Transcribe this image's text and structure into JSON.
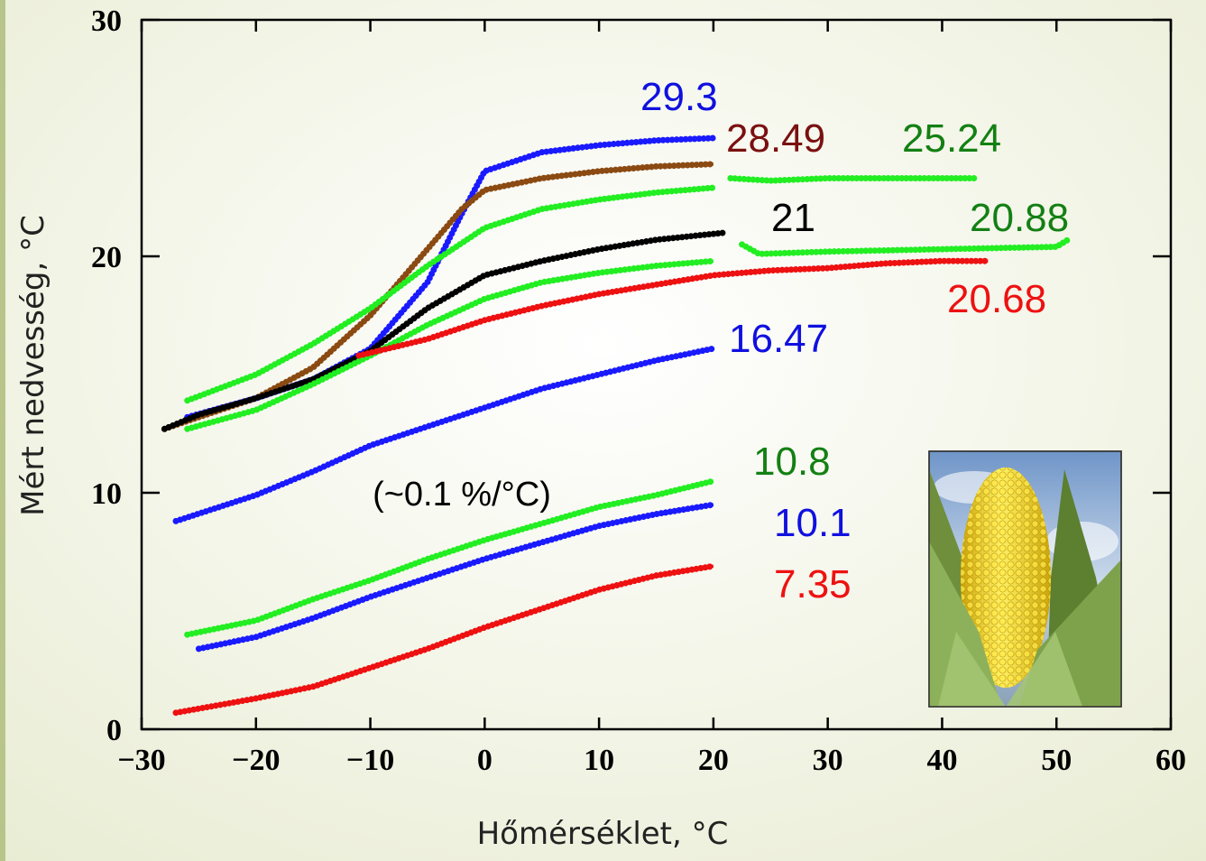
{
  "chart_data": {
    "type": "line",
    "xlabel": "Hőmérséklet, °C",
    "ylabel": "Mért nedvesség, °C",
    "annotation": "(~0.1 %/°C)",
    "xlim": [
      -30,
      60
    ],
    "xticks": [
      {
        "value": -30,
        "label": "−30"
      },
      {
        "value": -20,
        "label": "−20"
      },
      {
        "value": -10,
        "label": "−10"
      },
      0,
      10,
      20,
      30,
      40,
      50,
      60
    ],
    "ylim": [
      0,
      30
    ],
    "yticks": [
      0,
      10,
      20,
      30
    ],
    "series": [
      {
        "name": "29.3",
        "color": "#1a1aff",
        "label_color": "#1010e0",
        "x": [
          -26,
          -20,
          -15,
          -10,
          -5,
          -2,
          0,
          5,
          10,
          15,
          20
        ],
        "values": [
          13.2,
          14.0,
          14.8,
          16.1,
          18.9,
          21.8,
          23.6,
          24.4,
          24.7,
          24.9,
          25.0
        ]
      },
      {
        "name": "28.49",
        "color": "#8b4a12",
        "label_color": "#7a1010",
        "x": [
          -28,
          -25,
          -20,
          -15,
          -10,
          -5,
          -2,
          0,
          5,
          10,
          15,
          20
        ],
        "values": [
          12.7,
          13.2,
          14.0,
          15.3,
          17.5,
          20.3,
          22.0,
          22.8,
          23.3,
          23.6,
          23.8,
          23.9
        ]
      },
      {
        "name": "25.24",
        "color": "#22ee22",
        "label_color": "#138013",
        "x": [
          -26,
          -20,
          -15,
          -10,
          -5,
          0,
          5,
          10,
          15,
          20,
          null,
          21.5,
          25,
          30,
          40,
          43
        ],
        "values": [
          13.9,
          15.0,
          16.3,
          17.8,
          19.6,
          21.2,
          22.0,
          22.4,
          22.7,
          22.9,
          null,
          23.3,
          23.2,
          23.3,
          23.3,
          23.3
        ]
      },
      {
        "name": "21",
        "color": "#000000",
        "label_color": "#000000",
        "x": [
          -28,
          -25,
          -20,
          -15,
          -10,
          -5,
          0,
          5,
          10,
          15,
          21
        ],
        "values": [
          12.7,
          13.3,
          14.0,
          14.8,
          16.0,
          17.8,
          19.2,
          19.8,
          20.3,
          20.7,
          21.0
        ]
      },
      {
        "name": "20.88",
        "color": "#22ee22",
        "label_color": "#138013",
        "x": [
          -26,
          -20,
          -15,
          -10,
          -5,
          0,
          5,
          10,
          15,
          20,
          null,
          22.5,
          24,
          30,
          40,
          50,
          51
        ],
        "values": [
          12.7,
          13.5,
          14.6,
          15.8,
          17.1,
          18.2,
          18.9,
          19.3,
          19.6,
          19.8,
          null,
          20.5,
          20.1,
          20.2,
          20.3,
          20.4,
          20.7
        ]
      },
      {
        "name": "20.68",
        "color": "#ee1111",
        "label_color": "#ee1111",
        "x": [
          -11,
          -5,
          0,
          5,
          10,
          15,
          20,
          25,
          30,
          35,
          40,
          44
        ],
        "values": [
          15.8,
          16.5,
          17.3,
          17.9,
          18.4,
          18.8,
          19.2,
          19.4,
          19.5,
          19.7,
          19.8,
          19.8
        ]
      },
      {
        "name": "16.47",
        "color": "#1a1aff",
        "label_color": "#1010e0",
        "x": [
          -27,
          -20,
          -15,
          -10,
          -5,
          0,
          5,
          10,
          15,
          20
        ],
        "values": [
          8.8,
          9.9,
          10.9,
          12.0,
          12.8,
          13.6,
          14.4,
          15.0,
          15.6,
          16.1
        ]
      },
      {
        "name": "10.8",
        "color": "#22ee22",
        "label_color": "#138013",
        "x": [
          -26,
          -20,
          -15,
          -10,
          -5,
          0,
          5,
          10,
          15,
          20
        ],
        "values": [
          4.0,
          4.6,
          5.5,
          6.3,
          7.2,
          8.0,
          8.7,
          9.4,
          9.9,
          10.5
        ]
      },
      {
        "name": "10.1",
        "color": "#1a1aff",
        "label_color": "#1010e0",
        "x": [
          -25,
          -20,
          -15,
          -10,
          -5,
          0,
          5,
          10,
          15,
          20
        ],
        "values": [
          3.4,
          3.9,
          4.7,
          5.6,
          6.4,
          7.2,
          7.9,
          8.6,
          9.1,
          9.5
        ]
      },
      {
        "name": "7.35",
        "color": "#ee1111",
        "label_color": "#ee1111",
        "x": [
          -27,
          -20,
          -15,
          -10,
          -5,
          0,
          5,
          10,
          15,
          20
        ],
        "values": [
          0.7,
          1.3,
          1.8,
          2.6,
          3.4,
          4.3,
          5.1,
          5.9,
          6.5,
          6.9
        ]
      }
    ]
  }
}
